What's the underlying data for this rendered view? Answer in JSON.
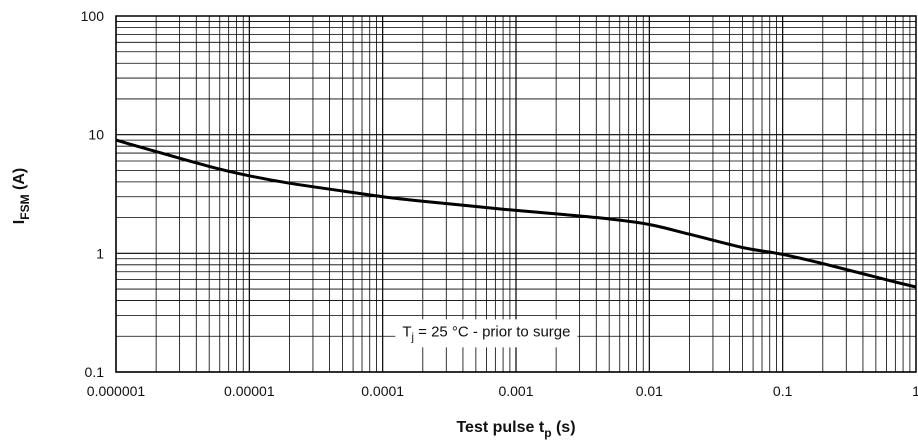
{
  "chart_data": {
    "type": "line",
    "x_scale": "log",
    "y_scale": "log",
    "xlim": [
      1e-06,
      1
    ],
    "ylim": [
      0.1,
      100
    ],
    "grid": true,
    "x_tick_labels": [
      "0.000001",
      "0.00001",
      "0.0001",
      "0.001",
      "0.01",
      "0.1",
      "1"
    ],
    "y_tick_labels": [
      "0.1",
      "1",
      "10",
      "100"
    ],
    "xlabel": {
      "main": "Test pulse t",
      "sub": "p",
      "suffix": " (s)"
    },
    "ylabel": {
      "main": "I",
      "sub": "FSM",
      "suffix": " (A)"
    },
    "annotation": {
      "main": "T",
      "sub": "j",
      "suffix": " = 25 °C - prior to surge",
      "x": 0.0006,
      "y": 0.22
    },
    "series": [
      {
        "x": [
          1e-06,
          2e-06,
          5e-06,
          1e-05,
          2e-05,
          5e-05,
          0.0001,
          0.0002,
          0.0005,
          0.001,
          0.002,
          0.005,
          0.01,
          0.02,
          0.05,
          0.1,
          0.2,
          0.5,
          1
        ],
        "values": [
          9.0,
          7.2,
          5.4,
          4.5,
          3.9,
          3.35,
          3.0,
          2.75,
          2.48,
          2.3,
          2.15,
          1.95,
          1.75,
          1.45,
          1.12,
          0.98,
          0.82,
          0.63,
          0.52
        ]
      }
    ]
  }
}
